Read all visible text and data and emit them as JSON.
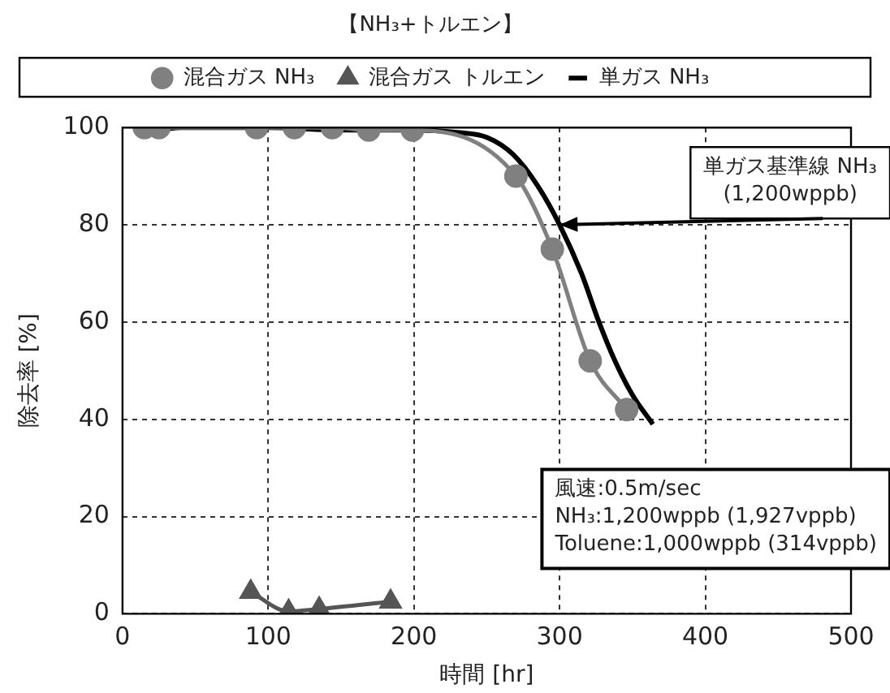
{
  "chart_data": {
    "type": "line",
    "title": "【NH₃+トルエン】",
    "xlabel": "時間 [hr]",
    "ylabel": "除去率 [%]",
    "series": [
      {
        "name": "混合ガス NH₃",
        "color": "#808080",
        "marker": "circle",
        "x": [
          15,
          25,
          92,
          118,
          144,
          169,
          199,
          270,
          295,
          321,
          346
        ],
        "values": [
          100,
          100,
          100,
          100,
          100,
          99.5,
          99.5,
          90,
          75,
          52,
          42
        ]
      },
      {
        "name": "混合ガス トルエン",
        "color": "#555555",
        "marker": "triangle",
        "x": [
          88,
          114,
          135,
          184
        ],
        "values": [
          4.5,
          0.5,
          1,
          2.5
        ]
      },
      {
        "name": "単ガス NH₃",
        "color": "#000000",
        "marker": "none",
        "x": [
          15,
          40,
          60,
          100,
          150,
          200,
          230,
          250,
          268,
          285,
          300,
          315,
          327,
          338,
          350,
          364
        ],
        "values": [
          99,
          100,
          100,
          100,
          99.5,
          99.5,
          99,
          98,
          94.5,
          88,
          80,
          70,
          60,
          52,
          45,
          39
        ]
      }
    ],
    "xlim": [
      0,
      500
    ],
    "xticks": [
      0,
      100,
      200,
      300,
      400,
      500
    ],
    "ylim": [
      0,
      100
    ],
    "yticks": [
      0,
      20,
      40,
      60,
      80,
      100
    ],
    "grid": true,
    "legend": "top",
    "line_style": "solid",
    "annotations": [
      {
        "text": "単ガス基準線 NH₃\n(1,200wppb)",
        "x": 300,
        "y": 80
      },
      "風速:0.5m/sec\nNH₃:1,200wppb (1,927vppb)\nToluene:1,000wppb (314vppb)"
    ]
  }
}
